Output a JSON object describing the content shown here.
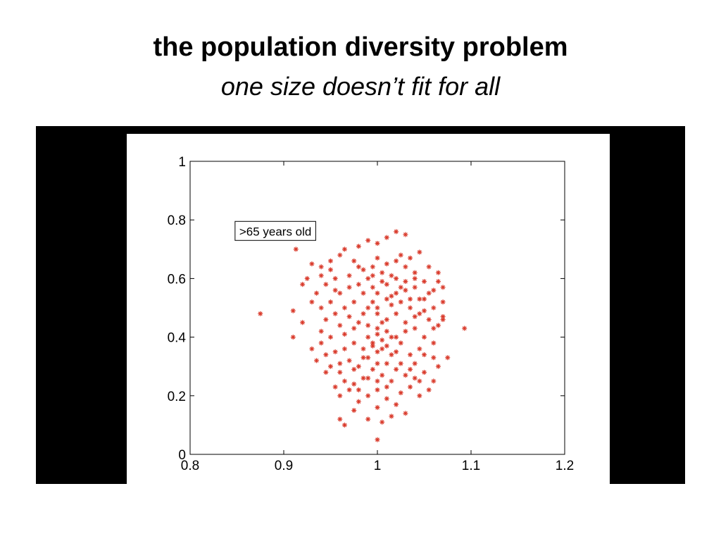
{
  "slide": {
    "title": "the population diversity problem",
    "subtitle": "one size doesn’t fit for all"
  },
  "colors": {
    "frame": "#000000",
    "marker": "#d93a2b",
    "background": "#ffffff"
  },
  "chart_data": {
    "type": "scatter",
    "title": "",
    "xlabel": "",
    "ylabel": "",
    "xlim": [
      0.8,
      1.2
    ],
    "ylim": [
      0,
      1
    ],
    "xticks": [
      "0.8",
      "0.9",
      "1",
      "1.1",
      "1.2"
    ],
    "xtick_values": [
      0.8,
      0.9,
      1.0,
      1.1,
      1.2
    ],
    "yticks": [
      "0",
      "0.2",
      "0.4",
      "0.6",
      "0.8",
      "1"
    ],
    "ytick_values": [
      0,
      0.2,
      0.4,
      0.6,
      0.8,
      1.0
    ],
    "grid": false,
    "marker": "*",
    "annotation": {
      "text": ">65 years old",
      "x": 0.848,
      "y": 0.795
    },
    "series": [
      {
        "points": [
          [
            0.875,
            0.48
          ],
          [
            0.91,
            0.49
          ],
          [
            0.91,
            0.4
          ],
          [
            0.913,
            0.7
          ],
          [
            0.92,
            0.45
          ],
          [
            0.925,
            0.6
          ],
          [
            0.93,
            0.65
          ],
          [
            0.94,
            0.64
          ],
          [
            0.95,
            0.63
          ],
          [
            0.955,
            0.56
          ],
          [
            0.96,
            0.68
          ],
          [
            0.965,
            0.7
          ],
          [
            0.97,
            0.61
          ],
          [
            0.975,
            0.66
          ],
          [
            0.98,
            0.58
          ],
          [
            0.985,
            0.63
          ],
          [
            0.99,
            0.6
          ],
          [
            0.995,
            0.57
          ],
          [
            1.0,
            0.55
          ],
          [
            1.005,
            0.62
          ],
          [
            1.01,
            0.58
          ],
          [
            1.015,
            0.54
          ],
          [
            1.02,
            0.6
          ],
          [
            1.025,
            0.52
          ],
          [
            1.03,
            0.56
          ],
          [
            1.035,
            0.5
          ],
          [
            1.04,
            0.57
          ],
          [
            1.045,
            0.48
          ],
          [
            1.05,
            0.53
          ],
          [
            1.055,
            0.46
          ],
          [
            1.06,
            0.5
          ],
          [
            1.065,
            0.44
          ],
          [
            1.07,
            0.47
          ],
          [
            1.093,
            0.43
          ],
          [
            1.03,
            0.75
          ],
          [
            1.02,
            0.76
          ],
          [
            1.01,
            0.74
          ],
          [
            1.0,
            0.72
          ],
          [
            0.99,
            0.73
          ],
          [
            0.98,
            0.71
          ],
          [
            1.045,
            0.69
          ],
          [
            1.035,
            0.67
          ],
          [
            1.025,
            0.68
          ],
          [
            1.055,
            0.64
          ],
          [
            1.065,
            0.62
          ],
          [
            1.07,
            0.57
          ],
          [
            1.05,
            0.59
          ],
          [
            1.04,
            0.62
          ],
          [
            1.03,
            0.64
          ],
          [
            1.02,
            0.66
          ],
          [
            1.01,
            0.65
          ],
          [
            1.0,
            0.67
          ],
          [
            0.995,
            0.64
          ],
          [
            0.985,
            0.55
          ],
          [
            0.975,
            0.52
          ],
          [
            0.965,
            0.5
          ],
          [
            0.955,
            0.48
          ],
          [
            0.945,
            0.46
          ],
          [
            0.94,
            0.5
          ],
          [
            0.95,
            0.52
          ],
          [
            0.96,
            0.55
          ],
          [
            0.97,
            0.47
          ],
          [
            0.98,
            0.45
          ],
          [
            0.99,
            0.44
          ],
          [
            1.0,
            0.43
          ],
          [
            1.01,
            0.46
          ],
          [
            1.02,
            0.48
          ],
          [
            1.03,
            0.45
          ],
          [
            1.04,
            0.43
          ],
          [
            1.05,
            0.4
          ],
          [
            1.06,
            0.38
          ],
          [
            1.045,
            0.36
          ],
          [
            1.035,
            0.34
          ],
          [
            1.025,
            0.38
          ],
          [
            1.015,
            0.4
          ],
          [
            1.005,
            0.39
          ],
          [
            0.995,
            0.37
          ],
          [
            0.985,
            0.36
          ],
          [
            0.975,
            0.38
          ],
          [
            0.965,
            0.36
          ],
          [
            0.955,
            0.35
          ],
          [
            0.945,
            0.34
          ],
          [
            0.95,
            0.3
          ],
          [
            0.96,
            0.28
          ],
          [
            0.97,
            0.32
          ],
          [
            0.98,
            0.3
          ],
          [
            0.99,
            0.33
          ],
          [
            1.0,
            0.35
          ],
          [
            1.01,
            0.31
          ],
          [
            1.02,
            0.29
          ],
          [
            1.03,
            0.27
          ],
          [
            1.04,
            0.26
          ],
          [
            1.05,
            0.28
          ],
          [
            1.055,
            0.22
          ],
          [
            1.045,
            0.2
          ],
          [
            1.035,
            0.23
          ],
          [
            1.025,
            0.21
          ],
          [
            1.015,
            0.25
          ],
          [
            1.005,
            0.27
          ],
          [
            0.995,
            0.29
          ],
          [
            0.985,
            0.26
          ],
          [
            0.975,
            0.24
          ],
          [
            0.965,
            0.25
          ],
          [
            0.955,
            0.23
          ],
          [
            0.96,
            0.2
          ],
          [
            0.97,
            0.22
          ],
          [
            0.98,
            0.18
          ],
          [
            0.99,
            0.2
          ],
          [
            1.0,
            0.22
          ],
          [
            1.01,
            0.19
          ],
          [
            1.02,
            0.17
          ],
          [
            1.03,
            0.14
          ],
          [
            1.0,
            0.16
          ],
          [
            0.99,
            0.12
          ],
          [
            0.975,
            0.15
          ],
          [
            0.96,
            0.12
          ],
          [
            0.965,
            0.1
          ],
          [
            1.005,
            0.11
          ],
          [
            1.015,
            0.13
          ],
          [
            1.0,
            0.05
          ],
          [
            0.93,
            0.36
          ],
          [
            0.94,
            0.38
          ],
          [
            0.935,
            0.32
          ],
          [
            0.945,
            0.28
          ],
          [
            1.065,
            0.3
          ],
          [
            1.06,
            0.25
          ],
          [
            1.075,
            0.33
          ],
          [
            1.0,
            0.41
          ],
          [
            1.005,
            0.36
          ],
          [
            0.995,
            0.38
          ],
          [
            1.01,
            0.37
          ],
          [
            1.015,
            0.34
          ],
          [
            0.99,
            0.4
          ],
          [
            1.0,
            0.31
          ],
          [
            1.01,
            0.42
          ],
          [
            0.985,
            0.33
          ],
          [
            1.02,
            0.35
          ],
          [
            1.005,
            0.45
          ],
          [
            1.015,
            0.51
          ],
          [
            1.025,
            0.57
          ],
          [
            1.005,
            0.59
          ],
          [
            0.995,
            0.52
          ],
          [
            1.0,
            0.5
          ],
          [
            1.01,
            0.53
          ],
          [
            1.02,
            0.55
          ],
          [
            1.03,
            0.59
          ],
          [
            1.04,
            0.6
          ],
          [
            1.035,
            0.53
          ],
          [
            1.015,
            0.61
          ],
          [
            0.995,
            0.61
          ],
          [
            0.98,
            0.64
          ],
          [
            0.97,
            0.57
          ],
          [
            0.955,
            0.6
          ],
          [
            0.945,
            0.58
          ],
          [
            0.935,
            0.55
          ],
          [
            0.94,
            0.61
          ],
          [
            0.95,
            0.66
          ],
          [
            0.92,
            0.58
          ],
          [
            0.93,
            0.52
          ],
          [
            1.06,
            0.56
          ],
          [
            1.07,
            0.52
          ],
          [
            1.065,
            0.59
          ],
          [
            1.055,
            0.55
          ],
          [
            1.045,
            0.53
          ],
          [
            1.05,
            0.49
          ],
          [
            1.06,
            0.43
          ],
          [
            1.07,
            0.46
          ],
          [
            1.04,
            0.47
          ],
          [
            1.03,
            0.42
          ],
          [
            0.975,
            0.43
          ],
          [
            0.965,
            0.41
          ],
          [
            0.985,
            0.48
          ],
          [
            0.99,
            0.5
          ],
          [
            1.0,
            0.48
          ],
          [
            0.96,
            0.44
          ],
          [
            0.95,
            0.4
          ],
          [
            0.94,
            0.42
          ],
          [
            1.05,
            0.34
          ],
          [
            1.06,
            0.33
          ],
          [
            1.04,
            0.31
          ],
          [
            0.99,
            0.26
          ],
          [
            1.0,
            0.25
          ],
          [
            0.98,
            0.22
          ],
          [
            1.01,
            0.23
          ],
          [
            0.975,
            0.29
          ],
          [
            0.96,
            0.31
          ],
          [
            1.025,
            0.31
          ],
          [
            1.035,
            0.29
          ],
          [
            1.045,
            0.25
          ],
          [
            1.02,
            0.4
          ]
        ]
      }
    ]
  }
}
